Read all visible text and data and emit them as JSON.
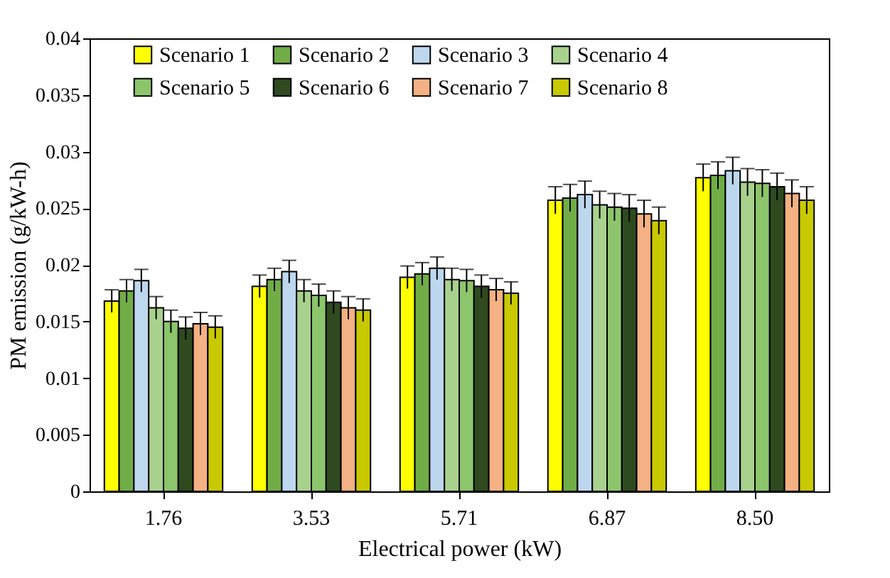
{
  "chart_data": {
    "type": "bar",
    "xlabel": "Electrical power (kW)",
    "ylabel": "PM emission (g/kW-h)",
    "categories": [
      "1.76",
      "3.53",
      "5.71",
      "6.87",
      "8.50"
    ],
    "ylim": [
      0,
      0.04
    ],
    "yticks": [
      0,
      0.005,
      0.01,
      0.015,
      0.02,
      0.025,
      0.03,
      0.035,
      0.04
    ],
    "legend": "top",
    "grid": false,
    "series": [
      {
        "name": "Scenario 1",
        "color": "#ffff00",
        "values": [
          0.0168,
          0.0181,
          0.0189,
          0.0257,
          0.0277
        ],
        "errors": [
          0.001,
          0.001,
          0.001,
          0.0012,
          0.0012
        ]
      },
      {
        "name": "Scenario 2",
        "color": "#70ad47",
        "values": [
          0.0177,
          0.0187,
          0.0192,
          0.0259,
          0.0279
        ],
        "errors": [
          0.001,
          0.001,
          0.001,
          0.0012,
          0.0012
        ]
      },
      {
        "name": "Scenario 3",
        "color": "#bdd7ee",
        "values": [
          0.0186,
          0.0194,
          0.0197,
          0.0262,
          0.0283
        ],
        "errors": [
          0.001,
          0.001,
          0.001,
          0.0012,
          0.0012
        ]
      },
      {
        "name": "Scenario 4",
        "color": "#a9d18e",
        "values": [
          0.0162,
          0.0177,
          0.0187,
          0.0253,
          0.0273
        ],
        "errors": [
          0.001,
          0.001,
          0.001,
          0.0012,
          0.0012
        ]
      },
      {
        "name": "Scenario 5",
        "color": "#8cc56b",
        "values": [
          0.015,
          0.0173,
          0.0186,
          0.0251,
          0.0272
        ],
        "errors": [
          0.001,
          0.001,
          0.001,
          0.0012,
          0.0012
        ]
      },
      {
        "name": "Scenario 6",
        "color": "#2e4a1e",
        "values": [
          0.0144,
          0.0167,
          0.0181,
          0.025,
          0.0269
        ],
        "errors": [
          0.001,
          0.001,
          0.001,
          0.0012,
          0.0012
        ]
      },
      {
        "name": "Scenario 7",
        "color": "#f4b183",
        "values": [
          0.0148,
          0.0162,
          0.0178,
          0.0245,
          0.0263
        ],
        "errors": [
          0.001,
          0.001,
          0.001,
          0.0012,
          0.0012
        ]
      },
      {
        "name": "Scenario 8",
        "color": "#c9c900",
        "values": [
          0.0145,
          0.016,
          0.0175,
          0.0239,
          0.0257
        ],
        "errors": [
          0.001,
          0.001,
          0.001,
          0.0012,
          0.0012
        ]
      }
    ]
  }
}
